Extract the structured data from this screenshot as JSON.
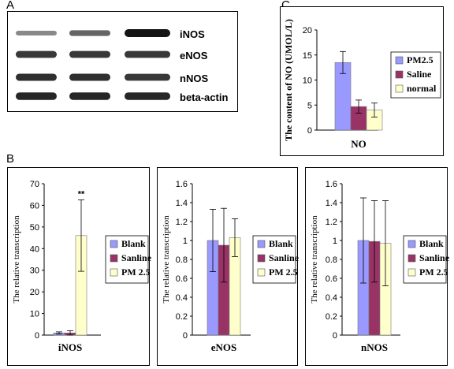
{
  "panels": {
    "a": {
      "letter": "A"
    },
    "b": {
      "letter": "B"
    },
    "c": {
      "letter": "C"
    }
  },
  "blot": {
    "bands": [
      {
        "label": "iNOS",
        "intensities": [
          0.35,
          0.55,
          1.0
        ]
      },
      {
        "label": "eNOS",
        "intensities": [
          0.8,
          0.8,
          0.8
        ]
      },
      {
        "label": "nNOS",
        "intensities": [
          0.85,
          0.85,
          0.8
        ]
      },
      {
        "label": "beta-actin",
        "intensities": [
          0.9,
          0.9,
          0.9
        ]
      }
    ]
  },
  "colors": {
    "PM2.5": "#9999ff",
    "Saline": "#993366",
    "normal": "#ffffcc",
    "Blank": "#9999ff",
    "Sanline": "#993366",
    "PM 2.5": "#ffffcc"
  },
  "chart_data": [
    {
      "type": "bar",
      "panel": "C",
      "categories": [
        "NO"
      ],
      "series": [
        {
          "name": "PM2.5",
          "values": [
            13.5
          ],
          "errors": [
            2.2
          ]
        },
        {
          "name": "Saline",
          "values": [
            4.7
          ],
          "errors": [
            1.3
          ]
        },
        {
          "name": "normal",
          "values": [
            4.0
          ],
          "errors": [
            1.4
          ]
        }
      ],
      "ylabel": "The content of NO (UMOL/L)",
      "ylim": [
        0,
        20
      ],
      "yticks": [
        "0",
        "5",
        "10",
        "15",
        "20"
      ],
      "legend": "right"
    },
    {
      "type": "bar",
      "panel": "B1",
      "categories": [
        "iNOS"
      ],
      "series": [
        {
          "name": "Blank",
          "values": [
            1.0
          ],
          "errors": [
            0.5
          ]
        },
        {
          "name": "Sanline",
          "values": [
            1.0
          ],
          "errors": [
            1.0
          ]
        },
        {
          "name": "PM 2.5",
          "values": [
            46.0
          ],
          "errors": [
            16.5
          ]
        }
      ],
      "annotations": [
        "**"
      ],
      "ylabel": "The relative transcription",
      "ylim": [
        0,
        70
      ],
      "yticks": [
        "0",
        "10",
        "20",
        "30",
        "40",
        "50",
        "60",
        "70"
      ],
      "legend": "right"
    },
    {
      "type": "bar",
      "panel": "B2",
      "categories": [
        "eNOS"
      ],
      "series": [
        {
          "name": "Blank",
          "values": [
            1.0
          ],
          "errors": [
            0.33
          ]
        },
        {
          "name": "Sanline",
          "values": [
            0.95
          ],
          "errors": [
            0.39
          ]
        },
        {
          "name": "PM 2.5",
          "values": [
            1.03
          ],
          "errors": [
            0.2
          ]
        }
      ],
      "ylabel": "The relative transcription",
      "ylim": [
        0,
        1.6
      ],
      "yticks": [
        "0",
        "0.2",
        "0.4",
        "0.6",
        "0.8",
        "1",
        "1.2",
        "1.4",
        "1.6"
      ],
      "legend": "right"
    },
    {
      "type": "bar",
      "panel": "B3",
      "categories": [
        "nNOS"
      ],
      "series": [
        {
          "name": "Blank",
          "values": [
            1.0
          ],
          "errors": [
            0.45
          ]
        },
        {
          "name": "Sanline",
          "values": [
            0.99
          ],
          "errors": [
            0.43
          ]
        },
        {
          "name": "PM 2.5",
          "values": [
            0.97
          ],
          "errors": [
            0.45
          ]
        }
      ],
      "ylabel": "The relative transcription",
      "ylim": [
        0,
        1.6
      ],
      "yticks": [
        "0",
        "0.2",
        "0.4",
        "0.6",
        "0.8",
        "1",
        "1.2",
        "1.4",
        "1.6"
      ],
      "legend": "right"
    }
  ]
}
